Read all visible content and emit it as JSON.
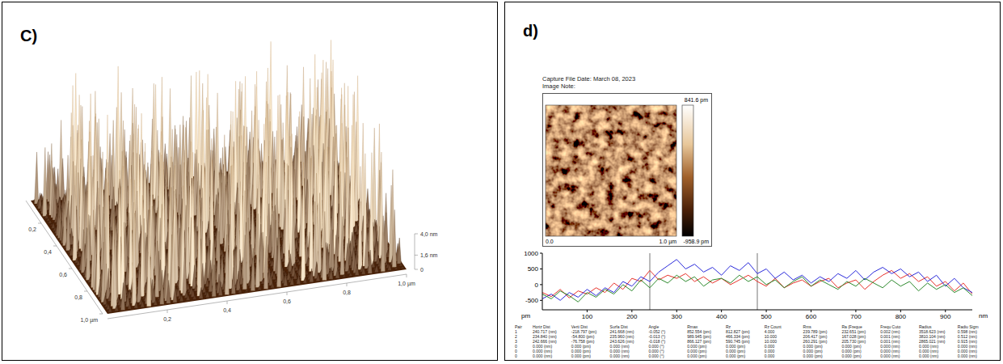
{
  "panel_c": {
    "label": "C)",
    "x_ticks": [
      {
        "value": 0.2,
        "label": "0,2"
      },
      {
        "value": 0.4,
        "label": "0,4"
      },
      {
        "value": 0.6,
        "label": "0,6"
      },
      {
        "value": 0.8,
        "label": "0,8"
      },
      {
        "value": 1,
        "label": "1,0 µm"
      }
    ],
    "y_ticks": [
      {
        "value": 0.2,
        "label": "0,2"
      },
      {
        "value": 0.4,
        "label": "0,4"
      },
      {
        "value": 0.6,
        "label": "0,6"
      },
      {
        "value": 0.8,
        "label": "0,8"
      },
      {
        "value": 1,
        "label": "1,0 µm"
      }
    ],
    "z_ticks": [
      0,
      {
        "value": 1.6,
        "label": "1,6 nm"
      },
      {
        "value": 4.0,
        "label": "4,0 nm"
      }
    ]
  },
  "panel_d": {
    "label": "d)",
    "capture_date": "Capture File Date: March 08, 2023",
    "image_note": "Image Note:",
    "height_map": {
      "max_label": "841.6 pm",
      "min_label": "-958.9 pm",
      "axis_start": "0.0",
      "axis_end": "1.0 µm"
    }
  },
  "chart_data": {
    "type": "line",
    "x_label": "nm",
    "y_label": "pm",
    "x": [
      0,
      20,
      40,
      60,
      80,
      100,
      120,
      140,
      160,
      180,
      200,
      220,
      240,
      260,
      280,
      300,
      320,
      340,
      360,
      380,
      400,
      420,
      440,
      460,
      480,
      500,
      520,
      540,
      560,
      580,
      600,
      620,
      640,
      660,
      680,
      700,
      720,
      740,
      760,
      780,
      800,
      820,
      840,
      860,
      880,
      900,
      920,
      940,
      960
    ],
    "series": [
      {
        "color": "#e8312a",
        "values": [
          -250,
          -380,
          -150,
          -420,
          -200,
          -300,
          -100,
          -250,
          50,
          -150,
          200,
          100,
          450,
          150,
          300,
          200,
          350,
          100,
          250,
          50,
          200,
          0,
          150,
          300,
          100,
          -50,
          200,
          -100,
          50,
          150,
          -50,
          100,
          200,
          -100,
          50,
          150,
          -150,
          100,
          300,
          450,
          200,
          350,
          100,
          250,
          -50,
          100,
          -200,
          50,
          -300
        ]
      },
      {
        "color": "#2b2bdb",
        "values": [
          -450,
          -300,
          -500,
          -250,
          -400,
          -150,
          -350,
          -100,
          -250,
          100,
          -50,
          250,
          100,
          400,
          600,
          800,
          500,
          650,
          400,
          550,
          300,
          600,
          450,
          700,
          350,
          500,
          200,
          400,
          150,
          300,
          50,
          250,
          100,
          350,
          200,
          450,
          150,
          400,
          550,
          350,
          500,
          250,
          400,
          100,
          300,
          -50,
          200,
          -100,
          -250
        ]
      },
      {
        "color": "#2d8a2d",
        "values": [
          -300,
          -450,
          -200,
          -350,
          -550,
          -250,
          -400,
          -150,
          -300,
          0,
          -200,
          150,
          -100,
          200,
          50,
          300,
          100,
          250,
          -50,
          150,
          200,
          50,
          300,
          100,
          250,
          0,
          150,
          -100,
          100,
          250,
          -50,
          150,
          0,
          -150,
          100,
          -50,
          200,
          50,
          -100,
          150,
          -50,
          100,
          -200,
          50,
          -150,
          0,
          -250,
          -100,
          -350
        ]
      }
    ],
    "xlim": [
      0,
      960
    ],
    "xticks": [
      100,
      200,
      300,
      400,
      500,
      600,
      700,
      800,
      900
    ],
    "ylim": [
      -800,
      1000
    ],
    "yticks": [
      -500,
      0,
      500,
      1000
    ],
    "grid": false,
    "cursors": [
      240,
      480
    ]
  },
  "table": {
    "header": [
      "Pair",
      "Horiz Dist",
      "Verti Dist",
      "Surfa Dist",
      "Angle",
      "Rmax",
      "Rz",
      "Rz Count",
      "Rms",
      "Ra (Freque",
      "Frequ Cuto",
      "Radius",
      "Radiu Sigm"
    ],
    "rows": [
      [
        "1",
        "240.717 (nm)",
        "-218.797 (pm)",
        "241.668 (nm)",
        "-0.052 (°)",
        "852.554 (pm)",
        "812.827 (pm)",
        "4.000",
        "239.789 (pm)",
        "232.651 (pm)",
        "0.002 (nm)",
        "3518.623 (nm)",
        "0.598 (nm)"
      ],
      [
        "2",
        "234.840 (nm)",
        "-54.800 (pm)",
        "235.960 (nm)",
        "-0.013 (°)",
        "989.945 (pm)",
        "466.334 (pm)",
        "10.000",
        "206.417 (pm)",
        "167.028 (pm)",
        "0.001 (nm)",
        "3810.104 (nm)",
        "0.512 (nm)"
      ],
      [
        "3",
        "242.666 (nm)",
        "-76.758 (pm)",
        "243.626 (nm)",
        "-0.018 (°)",
        "866.127 (pm)",
        "590.745 (pm)",
        "10.000",
        "260.291 (pm)",
        "205.730 (pm)",
        "0.001 (nm)",
        "2865.021 (nm)",
        "0.915 (nm)"
      ],
      [
        "0",
        "0.000 (nm)",
        "0.000 (pm)",
        "0.000 (nm)",
        "0.000 (°)",
        "0.000 (pm)",
        "0.000 (pm)",
        "0.000",
        "0.000 (pm)",
        "0.000 (pm)",
        "0.000 (nm)",
        "0.000 (nm)",
        "0.000 (nm)"
      ],
      [
        "0",
        "0.000 (nm)",
        "0.000 (pm)",
        "0.000 (nm)",
        "0.000 (°)",
        "0.000 (pm)",
        "0.000 (pm)",
        "0.000",
        "0.000 (pm)",
        "0.000 (pm)",
        "0.000 (nm)",
        "0.000 (nm)",
        "0.000 (nm)"
      ],
      [
        "0",
        "0.000 (nm)",
        "0.000 (pm)",
        "0.000 (nm)",
        "0.000 (°)",
        "0.000 (pm)",
        "0.000 (pm)",
        "0.000",
        "0.000 (pm)",
        "0.000 (pm)",
        "0.000 (nm)",
        "0.000 (nm)",
        "0.000 (nm)"
      ]
    ]
  }
}
